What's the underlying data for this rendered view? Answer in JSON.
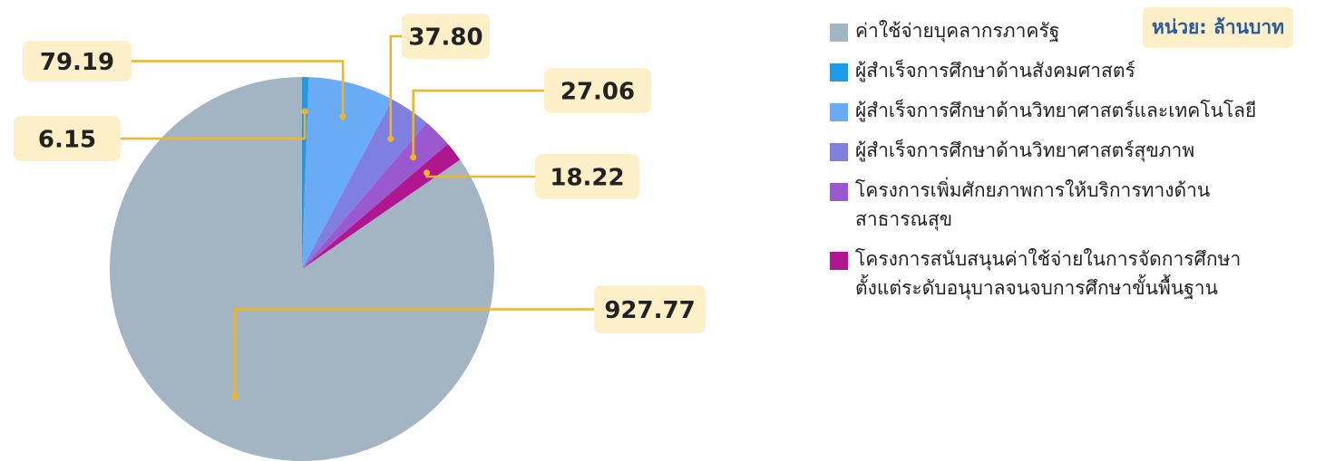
{
  "chart_data": {
    "type": "pie",
    "unit_label": "หน่วย: ล้านบาท",
    "categories": [
      "ค่าใช้จ่ายบุคลากรภาครัฐ",
      "ผู้สำเร็จการศึกษาด้านสังคมศาสตร์",
      "ผู้สำเร็จการศึกษาด้านวิทยาศาสตร์และเทคโนโลยี",
      "ผู้สำเร็จการศึกษาด้านวิทยาศาสตร์สุขภาพ",
      "โครงการเพิ่มศักยภาพการให้บริการทางด้านสาธารณสุข",
      "โครงการสนับสนุนค่าใช้จ่ายในการจัดการศึกษาตั้งแต่ระดับอนุบาลจนจบการศึกษาขั้นพื้นฐาน"
    ],
    "values": [
      927.77,
      6.15,
      79.19,
      37.8,
      27.06,
      18.22
    ],
    "value_labels": [
      "927.77",
      "6.15",
      "79.19",
      "37.80",
      "27.06",
      "18.22"
    ],
    "colors": [
      "#a3b4c3",
      "#1e9be8",
      "#6aabf5",
      "#7f7fe0",
      "#9b59d0",
      "#b0168f"
    ],
    "legend": "right"
  }
}
